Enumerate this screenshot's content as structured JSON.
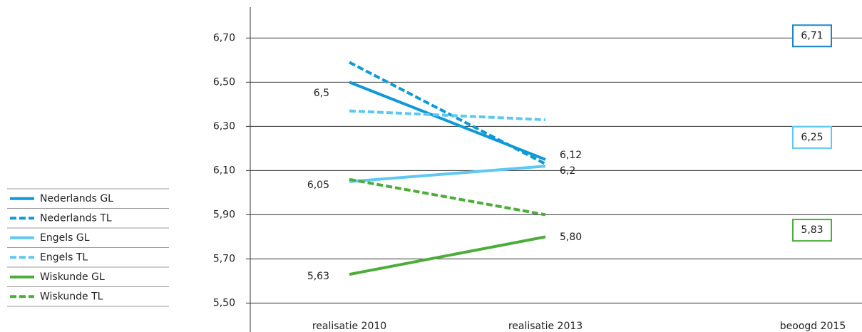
{
  "chart_data": {
    "type": "line",
    "categories": [
      "realisatie 2010",
      "realisatie 2013",
      "beoogd 2015"
    ],
    "series": [
      {
        "name": "Nederlands GL",
        "color": "#0e99d8",
        "dashed": false,
        "values": [
          6.5,
          6.15,
          null
        ]
      },
      {
        "name": "Nederlands TL",
        "color": "#0e99d8",
        "dashed": true,
        "values": [
          6.59,
          6.13,
          null
        ]
      },
      {
        "name": "Engels GL",
        "color": "#5ec8f2",
        "dashed": false,
        "values": [
          6.05,
          6.12,
          null
        ]
      },
      {
        "name": "Engels TL",
        "color": "#5ec8f2",
        "dashed": true,
        "values": [
          6.37,
          6.33,
          null
        ]
      },
      {
        "name": "Wiskunde GL",
        "color": "#4cad3a",
        "dashed": false,
        "values": [
          5.63,
          5.8,
          null
        ]
      },
      {
        "name": "Wiskunde TL",
        "color": "#4cad3a",
        "dashed": true,
        "values": [
          6.06,
          5.9,
          null
        ]
      }
    ],
    "annotations": [
      "6,5",
      "6,12",
      "6,2",
      "6,05",
      "5,80",
      "5,63"
    ],
    "targets": [
      {
        "label": "6,71",
        "value": 6.71,
        "color": "#1a86c7"
      },
      {
        "label": "6,25",
        "value": 6.25,
        "color": "#5ec8f2"
      },
      {
        "label": "5,83",
        "value": 5.83,
        "color": "#4cad3a"
      }
    ],
    "ylim": [
      5.45,
      6.84
    ],
    "yticks": [
      {
        "value": 5.5,
        "label": "5,50"
      },
      {
        "value": 5.7,
        "label": "5,70"
      },
      {
        "value": 5.9,
        "label": "5,90"
      },
      {
        "value": 6.1,
        "label": "6,10"
      },
      {
        "value": 6.3,
        "label": "6,30"
      },
      {
        "value": 6.5,
        "label": "6,50"
      },
      {
        "value": 6.7,
        "label": "6,70"
      }
    ],
    "grid": true
  }
}
